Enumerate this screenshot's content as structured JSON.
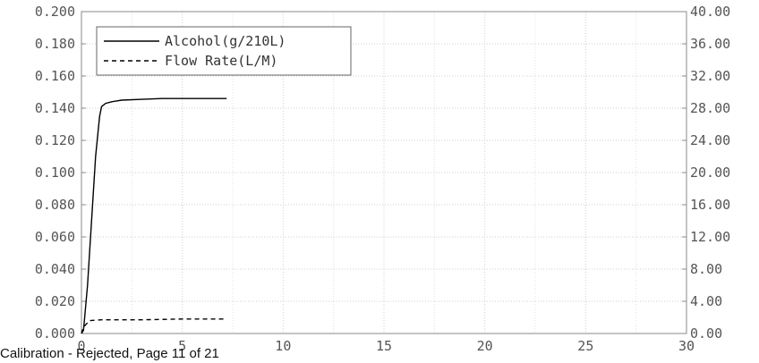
{
  "chart_data": {
    "type": "line",
    "title": "",
    "xlabel": "",
    "ylabel": "",
    "xlim": [
      0,
      30
    ],
    "ylim_left": [
      0,
      0.2
    ],
    "ylim_right": [
      0,
      40
    ],
    "x_ticks": [
      "0",
      "5",
      "10",
      "15",
      "20",
      "25",
      "30"
    ],
    "y_left_ticks": [
      "0.000",
      "0.020",
      "0.040",
      "0.060",
      "0.080",
      "0.100",
      "0.120",
      "0.140",
      "0.160",
      "0.180",
      "0.200"
    ],
    "y_right_ticks": [
      "0.00",
      "4.00",
      "8.00",
      "12.00",
      "16.00",
      "20.00",
      "24.00",
      "28.00",
      "32.00",
      "36.00",
      "40.00"
    ],
    "grid": true,
    "legend_position": "top-left",
    "series": [
      {
        "name": "Alcohol(g/210L)",
        "axis": "left",
        "style": "solid",
        "color": "#000000",
        "x": [
          0,
          0.1,
          0.3,
          0.5,
          0.7,
          0.9,
          1.0,
          1.2,
          1.5,
          2.0,
          3.0,
          4.0,
          5.0,
          6.0,
          7.2
        ],
        "y": [
          0.0,
          0.002,
          0.03,
          0.07,
          0.11,
          0.135,
          0.141,
          0.143,
          0.144,
          0.145,
          0.1455,
          0.146,
          0.146,
          0.146,
          0.146
        ]
      },
      {
        "name": "Flow Rate(L/M)",
        "axis": "right",
        "style": "dashed",
        "color": "#000000",
        "x": [
          0,
          0.1,
          0.4,
          1.0,
          3.0,
          5.0,
          7.2
        ],
        "y": [
          0.0,
          0.8,
          1.6,
          1.7,
          1.7,
          1.8,
          1.8
        ]
      }
    ]
  },
  "footer": {
    "text": "Calibration - Rejected, Page 11 of 21"
  }
}
